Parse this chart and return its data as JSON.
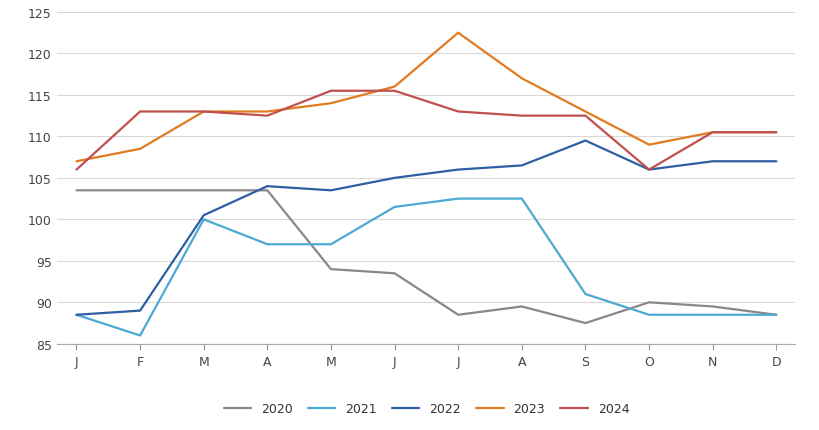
{
  "months": [
    "J",
    "F",
    "M",
    "A",
    "M",
    "J",
    "J",
    "A",
    "S",
    "O",
    "N",
    "D"
  ],
  "series": {
    "2020": [
      103.5,
      103.5,
      103.5,
      103.5,
      94.0,
      93.5,
      88.5,
      89.5,
      87.5,
      90.0,
      89.5,
      88.5
    ],
    "2021": [
      88.5,
      86.0,
      100.0,
      97.0,
      97.0,
      101.5,
      102.5,
      102.5,
      91.0,
      88.5,
      88.5,
      88.5
    ],
    "2022": [
      88.5,
      89.0,
      100.5,
      104.0,
      103.5,
      105.0,
      106.0,
      106.5,
      109.5,
      106.0,
      107.0,
      107.0
    ],
    "2023": [
      107.0,
      108.5,
      113.0,
      113.0,
      114.0,
      116.0,
      122.5,
      117.0,
      113.0,
      109.0,
      110.5,
      110.5
    ],
    "2024": [
      106.0,
      113.0,
      113.0,
      112.5,
      115.5,
      115.5,
      113.0,
      112.5,
      112.5,
      106.0,
      110.5,
      110.5
    ]
  },
  "colors": {
    "2020": "#888888",
    "2021": "#4baad3",
    "2022": "#2e5fa3",
    "2023": "#e07b20",
    "2024": "#c0504d"
  },
  "ylim": [
    85,
    125
  ],
  "yticks": [
    85,
    90,
    95,
    100,
    105,
    110,
    115,
    120,
    125
  ],
  "background_color": "#ffffff",
  "grid_color": "#d8d8d8",
  "legend_labels": [
    "2020",
    "2021",
    "2022",
    "2023",
    "2024"
  ]
}
